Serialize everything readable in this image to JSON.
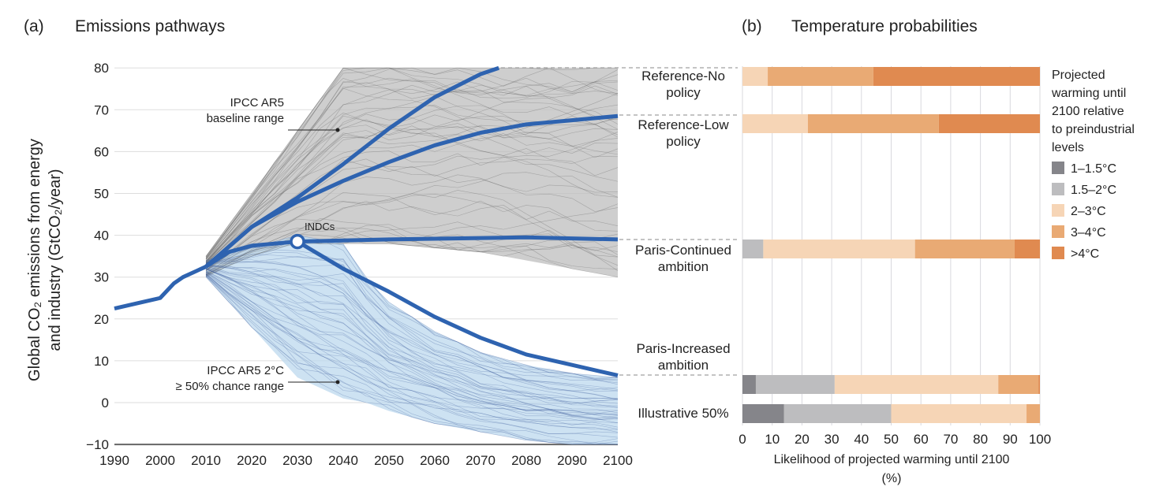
{
  "chart_data": [
    {
      "panel": "(a)",
      "title": "Emissions pathways",
      "type": "line",
      "ylabel_lines": [
        "Global CO₂ emissions from energy",
        "and industry (GtCO₂/year)"
      ],
      "xlim": [
        1990,
        2100
      ],
      "ylim": [
        -10,
        80
      ],
      "xticks": [
        1990,
        2000,
        2010,
        2020,
        2030,
        2040,
        2050,
        2060,
        2070,
        2080,
        2090,
        2100
      ],
      "yticks": [
        -10,
        0,
        10,
        20,
        30,
        40,
        50,
        60,
        70,
        80
      ],
      "grid": "horizontal",
      "annotations": {
        "baseline": [
          "IPCC AR5",
          "baseline range"
        ],
        "two_degree": [
          "IPCC AR5 2°C",
          "≥ 50% chance range"
        ],
        "indcs": "INDCs"
      },
      "ranges": [
        {
          "id": "baseline",
          "color": "#bdbdbd",
          "x": [
            2010,
            2020,
            2030,
            2040,
            2050,
            2060,
            2070,
            2080,
            2090,
            2100
          ],
          "upper": [
            35,
            50,
            65,
            80,
            80,
            80,
            80,
            80,
            80,
            80
          ],
          "lower": [
            30,
            35,
            38,
            38,
            38,
            37,
            36,
            34,
            32,
            30
          ]
        },
        {
          "id": "two_degree",
          "color": "#bcd8ee",
          "x": [
            2010,
            2020,
            2030,
            2040,
            2045,
            2050,
            2060,
            2070,
            2080,
            2090,
            2100
          ],
          "upper": [
            34,
            37,
            40,
            38,
            30,
            24,
            17,
            12,
            9,
            7,
            6
          ],
          "lower": [
            30,
            18,
            6,
            1,
            0,
            -2,
            -5,
            -7,
            -9,
            -10,
            -10
          ]
        }
      ],
      "series": [
        {
          "id": "historical",
          "x": [
            1990,
            2000,
            2003,
            2005,
            2008,
            2010
          ],
          "y": [
            22.5,
            25,
            28.5,
            30,
            31.5,
            32.5
          ]
        },
        {
          "id": "reference-no-policy",
          "x": [
            2010,
            2020,
            2030,
            2040,
            2050,
            2060,
            2070,
            2074
          ],
          "y": [
            32.5,
            42,
            49,
            57,
            65.5,
            73,
            78.5,
            80
          ]
        },
        {
          "id": "reference-low-policy",
          "x": [
            2010,
            2020,
            2030,
            2040,
            2050,
            2060,
            2070,
            2080,
            2090,
            2100
          ],
          "y": [
            32.5,
            42,
            48,
            53,
            57.5,
            61.5,
            64.5,
            66.5,
            67.5,
            68.5
          ]
        },
        {
          "id": "paris-continued",
          "x": [
            2010,
            2015,
            2020,
            2030,
            2050,
            2080,
            2100
          ],
          "y": [
            32.5,
            36,
            37.5,
            38.5,
            39,
            39.5,
            39
          ]
        },
        {
          "id": "paris-increased",
          "x": [
            2030,
            2040,
            2050,
            2060,
            2070,
            2080,
            2090,
            2100
          ],
          "y": [
            38.5,
            32,
            26.5,
            20.5,
            15.5,
            11.5,
            9,
            6.5
          ]
        }
      ],
      "marker": {
        "label": "INDCs",
        "x": 2030,
        "y": 38.5
      },
      "line_color": "#2e63b0"
    },
    {
      "panel": "(b)",
      "title": "Temperature probabilities",
      "type": "bar",
      "orientation": "horizontal-stacked",
      "xlabel": "Likelihood of projected warming until 2100",
      "xlabel_unit": "(%)",
      "xlim": [
        0,
        100
      ],
      "xticks": [
        0,
        10,
        20,
        30,
        40,
        50,
        60,
        70,
        80,
        90,
        100
      ],
      "grid": "vertical",
      "legend_title": [
        "Projected",
        "warming until",
        "2100 relative",
        "to preindustrial",
        "levels"
      ],
      "legend_placement": "right",
      "categories": [
        [
          "Reference-No",
          "policy"
        ],
        [
          "Reference-Low",
          "policy"
        ],
        [
          "Paris-Continued",
          "ambition"
        ],
        [
          "Paris-Increased",
          "ambition"
        ],
        [
          "Illustrative 50%"
        ]
      ],
      "series": [
        {
          "name": "1–1.5°C",
          "color": "#85858a",
          "values": [
            0,
            0,
            0,
            4.5,
            14
          ]
        },
        {
          "name": "1.5–2°C",
          "color": "#bdbdbf",
          "values": [
            0,
            0,
            7,
            26.5,
            36
          ]
        },
        {
          "name": "2–3°C",
          "color": "#f6d5b6",
          "values": [
            8.5,
            22,
            51,
            55,
            45.5
          ]
        },
        {
          "name": "3–4°C",
          "color": "#e9aa74",
          "values": [
            35.5,
            44,
            33.5,
            13.5,
            4.5
          ]
        },
        {
          "name": ">4°C",
          "color": "#e08a50",
          "values": [
            56,
            34,
            8.5,
            0.5,
            0
          ]
        }
      ]
    }
  ]
}
